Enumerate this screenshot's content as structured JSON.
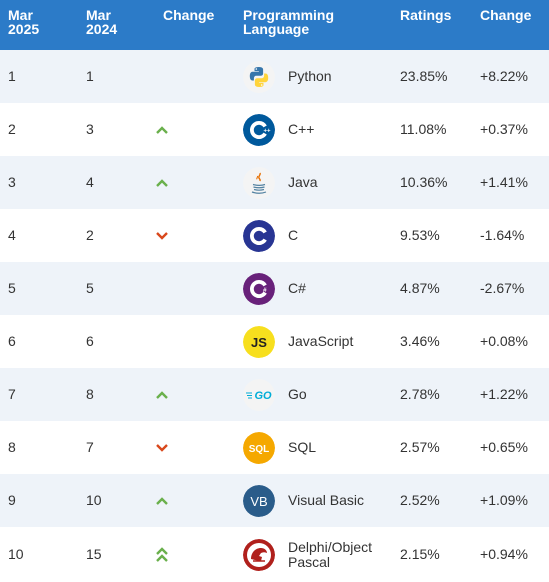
{
  "header": {
    "rank_2025": "Mar\n2025",
    "rank_2024": "Mar\n2024",
    "change": "Change",
    "language": "Programming\nLanguage",
    "ratings": "Ratings",
    "rating_change": "Change"
  },
  "rows": [
    {
      "r2025": "1",
      "r2024": "1",
      "trend": "none",
      "icon": "python-icon",
      "language": "Python",
      "rating": "23.85%",
      "change": "+8.22%"
    },
    {
      "r2025": "2",
      "r2024": "3",
      "trend": "up",
      "icon": "cpp-icon",
      "language": "C++",
      "rating": "11.08%",
      "change": "+0.37%"
    },
    {
      "r2025": "3",
      "r2024": "4",
      "trend": "up",
      "icon": "java-icon",
      "language": "Java",
      "rating": "10.36%",
      "change": "+1.41%"
    },
    {
      "r2025": "4",
      "r2024": "2",
      "trend": "down",
      "icon": "c-icon",
      "language": "C",
      "rating": "9.53%",
      "change": "-1.64%"
    },
    {
      "r2025": "5",
      "r2024": "5",
      "trend": "none",
      "icon": "csharp-icon",
      "language": "C#",
      "rating": "4.87%",
      "change": "-2.67%"
    },
    {
      "r2025": "6",
      "r2024": "6",
      "trend": "none",
      "icon": "javascript-icon",
      "language": "JavaScript",
      "rating": "3.46%",
      "change": "+0.08%"
    },
    {
      "r2025": "7",
      "r2024": "8",
      "trend": "up",
      "icon": "go-icon",
      "language": "Go",
      "rating": "2.78%",
      "change": "+1.22%"
    },
    {
      "r2025": "8",
      "r2024": "7",
      "trend": "down",
      "icon": "sql-icon",
      "language": "SQL",
      "rating": "2.57%",
      "change": "+0.65%"
    },
    {
      "r2025": "9",
      "r2024": "10",
      "trend": "up",
      "icon": "visual-basic-icon",
      "language": "Visual Basic",
      "rating": "2.52%",
      "change": "+1.09%"
    },
    {
      "r2025": "10",
      "r2024": "15",
      "trend": "double-up",
      "icon": "delphi-icon",
      "language": "Delphi/Object Pascal",
      "rating": "2.15%",
      "change": "+0.94%"
    }
  ],
  "colors": {
    "header_bg": "#2c7bc8",
    "stripe": "#eef3f9",
    "up": "#6ab04c",
    "down": "#d9481c"
  }
}
